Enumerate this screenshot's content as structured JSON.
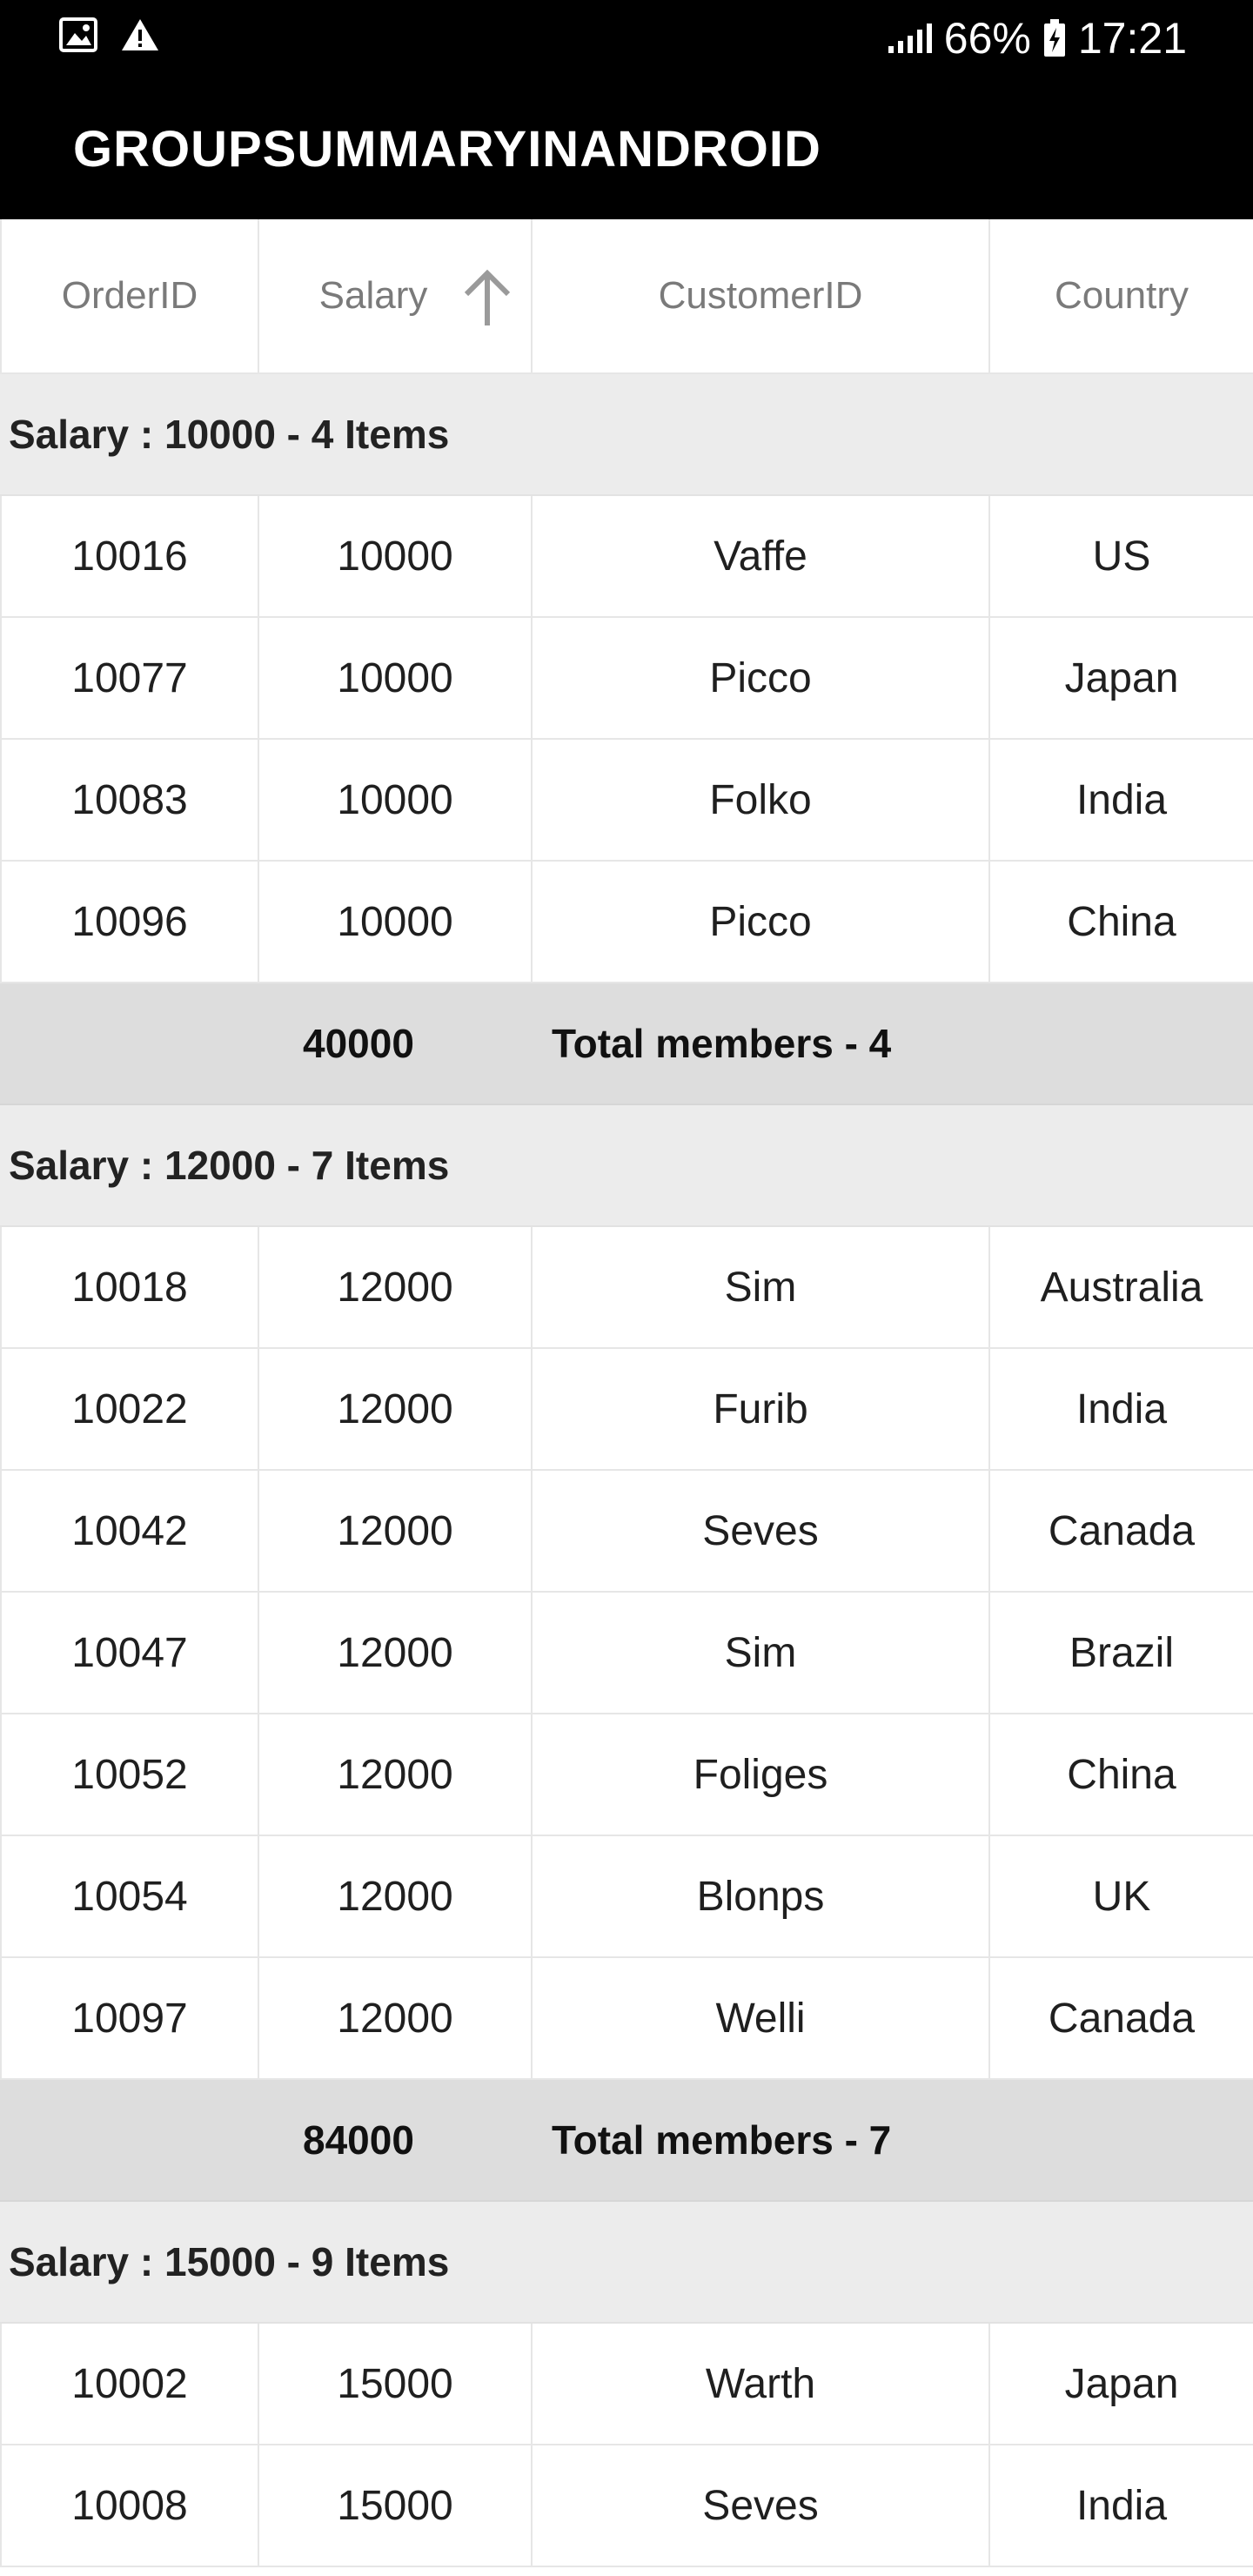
{
  "status_bar": {
    "battery": "66%",
    "time": "17:21"
  },
  "app_bar": {
    "title": "GROUPSUMMARYINANDROID"
  },
  "columns": [
    "OrderID",
    "Salary",
    "CustomerID",
    "Country"
  ],
  "groups": [
    {
      "caption": "Salary : 10000 - 4 Items",
      "rows": [
        [
          "10016",
          "10000",
          "Vaffe",
          "US"
        ],
        [
          "10077",
          "10000",
          "Picco",
          "Japan"
        ],
        [
          "10083",
          "10000",
          "Folko",
          "India"
        ],
        [
          "10096",
          "10000",
          "Picco",
          "China"
        ]
      ],
      "summary_value": "40000",
      "summary_text": "Total members - 4"
    },
    {
      "caption": "Salary : 12000 - 7 Items",
      "rows": [
        [
          "10018",
          "12000",
          "Sim",
          "Australia"
        ],
        [
          "10022",
          "12000",
          "Furib",
          "India"
        ],
        [
          "10042",
          "12000",
          "Seves",
          "Canada"
        ],
        [
          "10047",
          "12000",
          "Sim",
          "Brazil"
        ],
        [
          "10052",
          "12000",
          "Foliges",
          "China"
        ],
        [
          "10054",
          "12000",
          "Blonps",
          "UK"
        ],
        [
          "10097",
          "12000",
          "Welli",
          "Canada"
        ]
      ],
      "summary_value": "84000",
      "summary_text": "Total members - 7"
    },
    {
      "caption": "Salary : 15000 - 9 Items",
      "rows": [
        [
          "10002",
          "15000",
          "Warth",
          "Japan"
        ],
        [
          "10008",
          "15000",
          "Seves",
          "India"
        ]
      ]
    }
  ]
}
